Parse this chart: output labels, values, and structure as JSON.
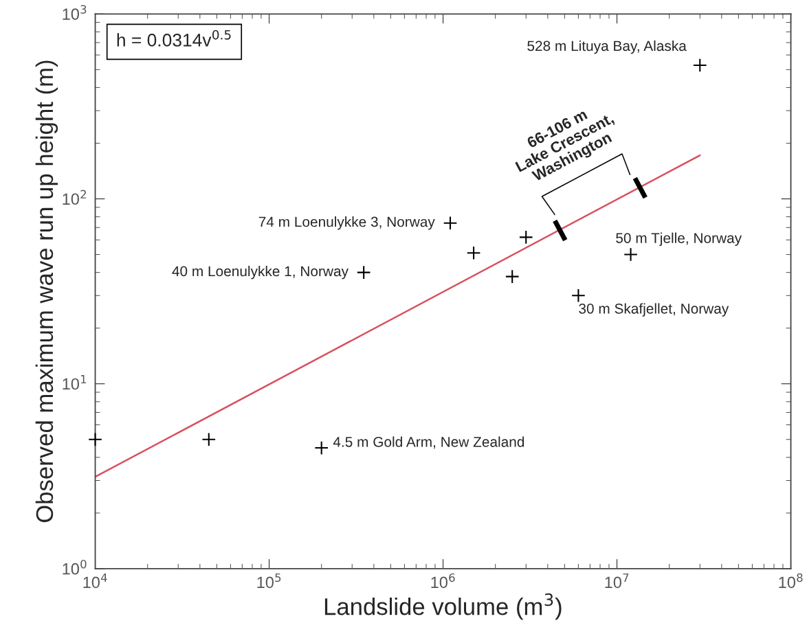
{
  "chart_data": {
    "type": "scatter",
    "xlabel": "Landslide volume (m$^{3}$)",
    "ylabel": "Observed maximum wave run up height (m)",
    "log": "xy",
    "grid": false,
    "xlim": [
      10000,
      100000000
    ],
    "ylim": [
      1,
      1000
    ],
    "xticks": [
      {
        "value": 10000,
        "label": "10$^{4}$"
      },
      {
        "value": 100000,
        "label": "10$^{5}$"
      },
      {
        "value": 1000000,
        "label": "10$^{6}$"
      },
      {
        "value": 10000000,
        "label": "10$^{7}$"
      },
      {
        "value": 100000000,
        "label": "10$^{8}$"
      }
    ],
    "yticks": [
      {
        "value": 1,
        "label": "10$^{0}$"
      },
      {
        "value": 10,
        "label": "10$^{1}$"
      },
      {
        "value": 100,
        "label": "10$^{2}$"
      },
      {
        "value": 1000,
        "label": "10$^{3}$"
      }
    ],
    "series": [
      {
        "type": "line",
        "color": "#d9505e",
        "marker": "none",
        "line_style": "solid",
        "x": [
          10000,
          30000000
        ],
        "values": [
          3.14,
          172
        ]
      },
      {
        "color": "#000000",
        "marker": "cross",
        "x": [
          10000,
          45000,
          200000,
          350000,
          1100000,
          1500000,
          2500000,
          3000000,
          6000000,
          12000000,
          30000000
        ],
        "values": [
          5,
          5,
          4.5,
          40,
          74,
          51,
          38,
          62,
          30,
          50,
          528
        ]
      }
    ],
    "annotations": [
      "h = 0.0314v$^{0.5}$",
      {
        "text": "528 m Lituya Bay, Alaska",
        "x": 30000000,
        "y": 528
      },
      {
        "text": "74 m Loenulykke 3, Norway",
        "x": 1100000,
        "y": 74
      },
      {
        "text": "40 m Loenulykke 1, Norway",
        "x": 350000,
        "y": 40
      },
      {
        "text": "50 m Tjelle, Norway",
        "x": 12000000,
        "y": 50
      },
      {
        "text": "30 m Skafjellet, Norway",
        "x": 6000000,
        "y": 30
      },
      {
        "text": "4.5 m Gold Arm, New Zealand",
        "x": 200000,
        "y": 4.5
      },
      {
        "text": "66-106 m\nLake Crescent,\nWashington",
        "x": 8000000,
        "y": 88
      }
    ]
  }
}
